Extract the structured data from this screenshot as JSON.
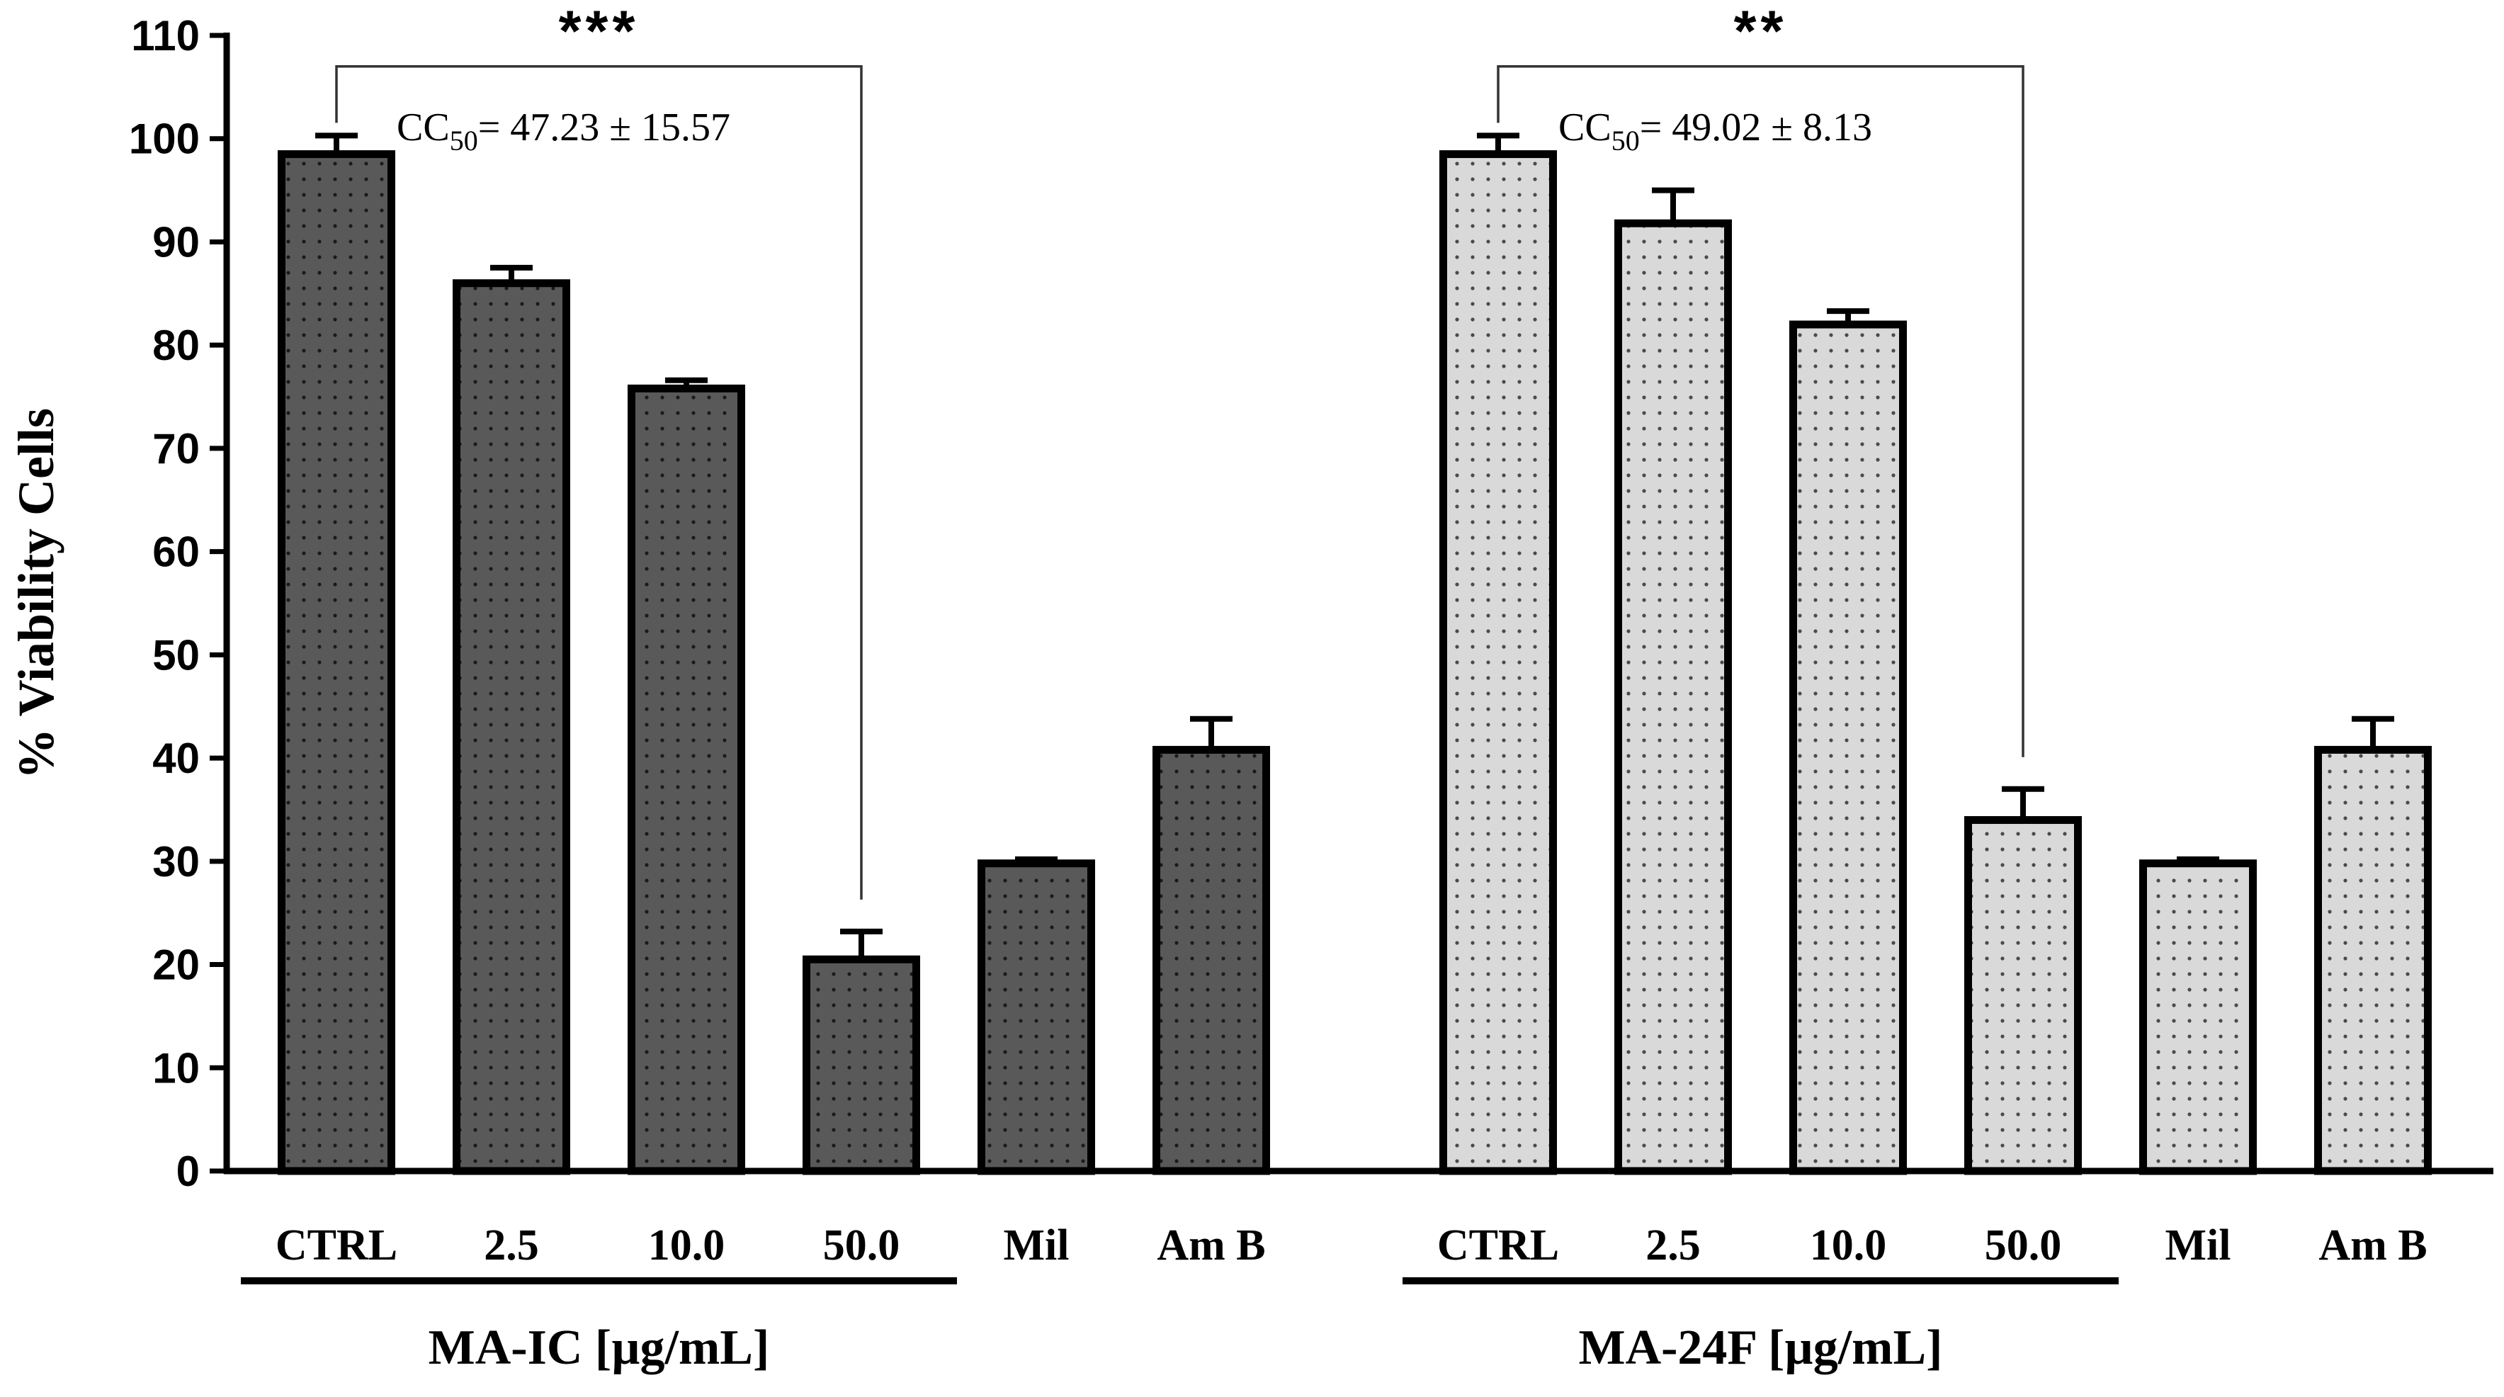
{
  "chart_data": {
    "type": "bar",
    "ylabel": "% Viability Cells",
    "ylim": [
      0,
      110
    ],
    "yticks": [
      "0",
      "10",
      "20",
      "30",
      "40",
      "50",
      "60",
      "70",
      "80",
      "90",
      "100",
      "110"
    ],
    "groups": [
      {
        "name": "MA-IC [µg/mL]",
        "fill_color": "#595959",
        "categories": [
          "CTRL",
          "2.5",
          "10.0",
          "50.0",
          "Mil",
          "Am B"
        ],
        "values": [
          98.5,
          86.0,
          75.8,
          20.5,
          29.8,
          40.8
        ],
        "errors": [
          1.8,
          1.5,
          0.8,
          2.7,
          0.4,
          3.0
        ],
        "significance": "***",
        "cc50": {
          "prefix": "CC",
          "subscript": "50",
          "text": "= 47.23 ± 15.57"
        }
      },
      {
        "name": "MA-24F [µg/mL]",
        "fill_color": "#d9d9d9",
        "categories": [
          "CTRL",
          "2.5",
          "10.0",
          "50.0",
          "Mil",
          "Am B"
        ],
        "values": [
          98.5,
          91.8,
          82.0,
          34.0,
          29.8,
          40.8
        ],
        "errors": [
          1.8,
          3.2,
          1.3,
          3.0,
          0.4,
          3.0
        ],
        "significance": "**",
        "cc50": {
          "prefix": "CC",
          "subscript": "50",
          "text": "= 49.02 ± 8.13"
        }
      }
    ]
  }
}
